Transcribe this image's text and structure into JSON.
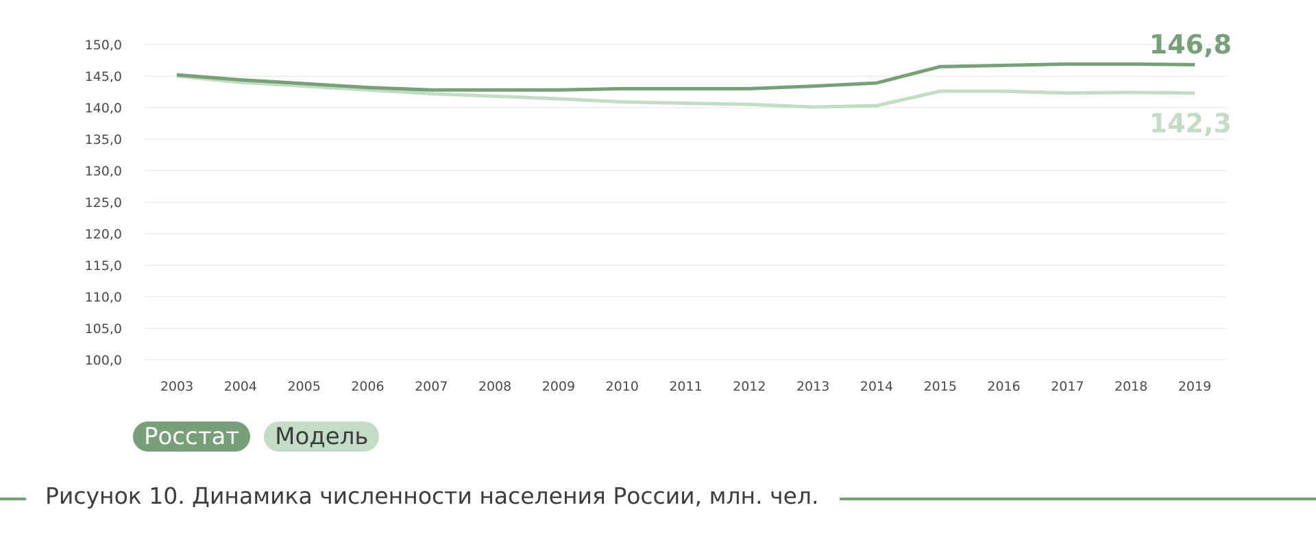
{
  "colors": {
    "rosstat": "#77a079",
    "model": "#c3dcc4",
    "grid": "#e6e6e6"
  },
  "chart_data": {
    "type": "line",
    "x": [
      "2003",
      "2004",
      "2005",
      "2006",
      "2007",
      "2008",
      "2009",
      "2010",
      "2011",
      "2012",
      "2013",
      "2014",
      "2015",
      "2016",
      "2017",
      "2018",
      "2019"
    ],
    "y_ticks": [
      "100,0",
      "105,0",
      "110,0",
      "115,0",
      "120,0",
      "125,0",
      "130,0",
      "135,0",
      "140,0",
      "145,0",
      "150,0"
    ],
    "ylim": [
      100,
      150
    ],
    "grid": true,
    "legend_position": "bottom-left",
    "series": [
      {
        "name": "Росстат",
        "values": [
          145.2,
          144.4,
          143.8,
          143.2,
          142.8,
          142.8,
          142.8,
          143.0,
          143.0,
          143.0,
          143.4,
          143.9,
          146.5,
          146.7,
          146.9,
          146.9,
          146.8
        ],
        "end_label": "146,8"
      },
      {
        "name": "Модель",
        "values": [
          145.0,
          144.0,
          143.4,
          142.8,
          142.2,
          141.8,
          141.4,
          140.9,
          140.7,
          140.5,
          140.1,
          140.3,
          142.6,
          142.6,
          142.3,
          142.4,
          142.3
        ],
        "end_label": "142,3"
      }
    ]
  },
  "legend": {
    "rosstat_label": "Росстат",
    "model_label": "Модель"
  },
  "caption": "Рисунок 10. Динамика численности населения России, млн. чел."
}
